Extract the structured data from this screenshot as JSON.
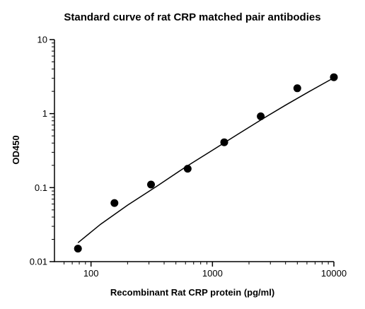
{
  "chart_data": {
    "type": "scatter",
    "title": "Standard curve of rat CRP matched pair antibodies",
    "xlabel": "Recombinant Rat CRP protein (pg/ml)",
    "ylabel": "OD450",
    "xscale": "log",
    "yscale": "log",
    "xlim": [
      50,
      10000
    ],
    "ylim": [
      0.01,
      10
    ],
    "x_ticks": [
      100,
      1000,
      10000
    ],
    "x_tick_labels": [
      "100",
      "1000",
      "10000"
    ],
    "y_ticks": [
      0.01,
      0.1,
      1,
      10
    ],
    "y_tick_labels": [
      "0.01",
      "0.1",
      "1",
      "10"
    ],
    "grid": false,
    "legend": "none",
    "series": [
      {
        "x": [
          78,
          156,
          312,
          625,
          1250,
          2500,
          5000,
          10000
        ],
        "y": [
          0.015,
          0.062,
          0.11,
          0.18,
          0.41,
          0.92,
          2.2,
          3.1
        ]
      }
    ],
    "fit_curve": {
      "x": [
        78,
        120,
        200,
        350,
        600,
        1000,
        1600,
        2500,
        4000,
        6300,
        10000
      ],
      "y": [
        0.018,
        0.032,
        0.058,
        0.105,
        0.19,
        0.32,
        0.52,
        0.82,
        1.3,
        2.0,
        3.05
      ]
    },
    "colors": {
      "marker": "#000000",
      "line": "#000000",
      "axis": "#000000"
    }
  }
}
